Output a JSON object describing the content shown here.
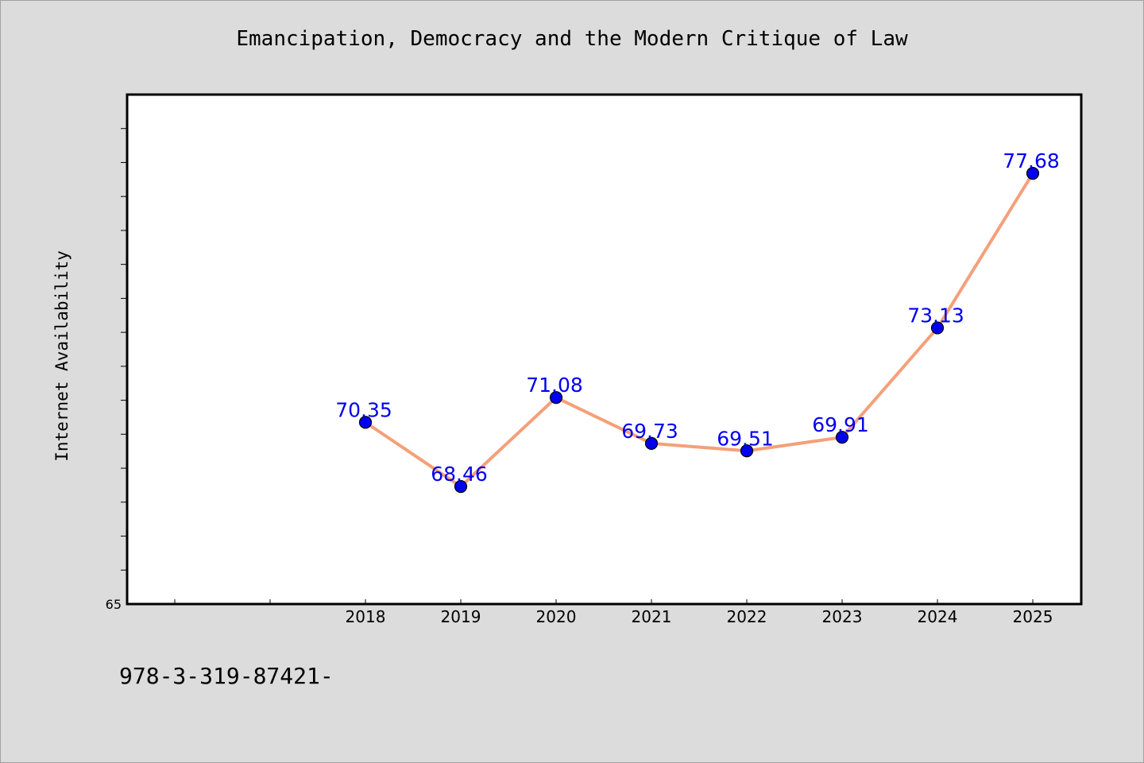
{
  "page": {
    "title": "Emancipation, Democracy and the Modern Critique of Law",
    "footer_text": "978-3-319-87421-"
  },
  "chart_data": {
    "type": "line",
    "title": "Emancipation, Democracy and the Modern Critique of Law",
    "xlabel": "",
    "ylabel": "Internet Availability",
    "categories": [
      "2018",
      "2019",
      "2020",
      "2021",
      "2022",
      "2023",
      "2024",
      "2025"
    ],
    "series": [
      {
        "values": [
          70.35,
          68.46,
          71.08,
          69.73,
          69.51,
          69.91,
          73.13,
          77.68
        ],
        "line_color": "#f4a07a",
        "marker_color": "#0000ee",
        "label_color": "#0000ee"
      }
    ],
    "ylim": [
      65,
      80
    ],
    "y_tick_labels": [
      "65"
    ],
    "grid": false,
    "legend": "none"
  }
}
